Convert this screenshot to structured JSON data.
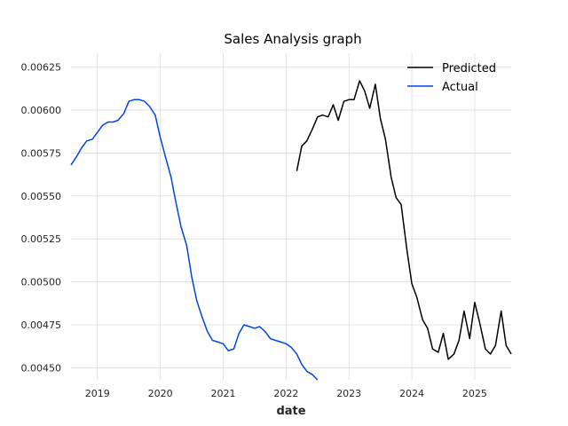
{
  "chart_data": {
    "type": "line",
    "title": "Sales Analysis graph",
    "xlabel": "date",
    "ylabel": "",
    "xlim": [
      2018.58,
      2025.58
    ],
    "ylim": [
      0.00443,
      0.00633
    ],
    "x_ticks": [
      2019,
      2020,
      2021,
      2022,
      2023,
      2024,
      2025
    ],
    "y_ticks": [
      0.0045,
      0.00475,
      0.005,
      0.00525,
      0.0055,
      0.00575,
      0.006,
      0.00625
    ],
    "grid": true,
    "legend_position": "top-right",
    "series": [
      {
        "name": "Predicted",
        "color": "#000000",
        "x": [
          2022.17,
          2022.25,
          2022.33,
          2022.42,
          2022.5,
          2022.58,
          2022.67,
          2022.75,
          2022.83,
          2022.92,
          2023.0,
          2023.08,
          2023.17,
          2023.25,
          2023.33,
          2023.42,
          2023.5,
          2023.58,
          2023.67,
          2023.75,
          2023.83,
          2023.92,
          2024.0,
          2024.08,
          2024.17,
          2024.25,
          2024.33,
          2024.42,
          2024.5,
          2024.58,
          2024.67,
          2024.75,
          2024.83,
          2024.92,
          2025.0,
          2025.08,
          2025.17,
          2025.25,
          2025.33,
          2025.42,
          2025.5,
          2025.58
        ],
        "values": [
          0.005645,
          0.00579,
          0.00582,
          0.00589,
          0.00596,
          0.00597,
          0.00596,
          0.00603,
          0.00594,
          0.00605,
          0.00606,
          0.00606,
          0.00617,
          0.00611,
          0.00601,
          0.00615,
          0.00595,
          0.00583,
          0.00561,
          0.00549,
          0.00545,
          0.00519,
          0.00499,
          0.00491,
          0.00478,
          0.00473,
          0.00461,
          0.00459,
          0.0047,
          0.00455,
          0.00458,
          0.00466,
          0.00483,
          0.00467,
          0.00488,
          0.00476,
          0.00461,
          0.00458,
          0.00463,
          0.00483,
          0.00463,
          0.00458
        ]
      },
      {
        "name": "Actual",
        "color": "#0044ee",
        "x": [
          2018.58,
          2018.67,
          2018.75,
          2018.83,
          2018.92,
          2019.0,
          2019.08,
          2019.17,
          2019.25,
          2019.33,
          2019.42,
          2019.5,
          2019.58,
          2019.67,
          2019.75,
          2019.83,
          2019.92,
          2020.0,
          2020.08,
          2020.17,
          2020.25,
          2020.33,
          2020.42,
          2020.5,
          2020.58,
          2020.67,
          2020.75,
          2020.83,
          2020.92,
          2021.0,
          2021.08,
          2021.17,
          2021.25,
          2021.33,
          2021.42,
          2021.5,
          2021.58,
          2021.67,
          2021.75,
          2021.83,
          2021.92,
          2022.0,
          2022.08,
          2022.17,
          2022.25,
          2022.33,
          2022.42,
          2022.5
        ],
        "values": [
          0.00568,
          0.00573,
          0.00578,
          0.00582,
          0.00583,
          0.00587,
          0.00591,
          0.00593,
          0.00593,
          0.00594,
          0.00598,
          0.00605,
          0.00606,
          0.00606,
          0.00605,
          0.00602,
          0.00597,
          0.00584,
          0.00573,
          0.00561,
          0.00546,
          0.00532,
          0.00521,
          0.00503,
          0.00489,
          0.00479,
          0.00471,
          0.00466,
          0.00465,
          0.00464,
          0.0046,
          0.00461,
          0.0047,
          0.00475,
          0.00474,
          0.00473,
          0.00474,
          0.00471,
          0.00467,
          0.00466,
          0.00465,
          0.00464,
          0.00462,
          0.00458,
          0.00452,
          0.00448,
          0.00446,
          0.00443
        ]
      }
    ]
  }
}
